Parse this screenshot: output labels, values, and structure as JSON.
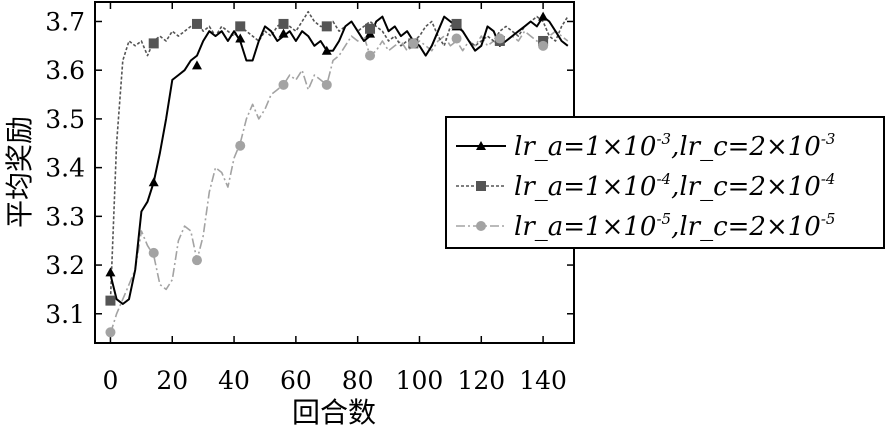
{
  "chart_data": {
    "type": "line",
    "title": "",
    "xlabel": "回合数",
    "ylabel": "平均奖励",
    "xlim": [
      -5,
      150
    ],
    "ylim": [
      3.04,
      3.74
    ],
    "xticks": [
      0,
      20,
      40,
      60,
      80,
      100,
      120,
      140
    ],
    "xtick_labels": [
      "0",
      "20",
      "40",
      "60",
      "80",
      "100",
      "120",
      "140"
    ],
    "yticks": [
      3.1,
      3.2,
      3.3,
      3.4,
      3.5,
      3.6,
      3.7
    ],
    "ytick_labels": [
      "3.1",
      "3.2",
      "3.3",
      "3.4",
      "3.5",
      "3.6",
      "3.7"
    ],
    "grid": false,
    "legend_position": "right",
    "series": [
      {
        "key": "a",
        "legend_pre": "lr_a=1×10",
        "legend_exp1": "-3",
        "legend_mid": ",lr_c=2×10",
        "legend_exp2": "-3",
        "color": "#000000",
        "dash": "",
        "width": 2,
        "marker": "triangle",
        "x": [
          0,
          2,
          4,
          6,
          8,
          10,
          12,
          14,
          16,
          18,
          20,
          22,
          24,
          26,
          28,
          30,
          32,
          34,
          36,
          38,
          40,
          42,
          44,
          46,
          48,
          50,
          52,
          54,
          56,
          58,
          60,
          62,
          64,
          66,
          68,
          70,
          72,
          74,
          76,
          78,
          80,
          82,
          84,
          86,
          88,
          90,
          92,
          94,
          96,
          98,
          100,
          102,
          104,
          106,
          108,
          110,
          112,
          114,
          116,
          118,
          120,
          122,
          124,
          126,
          128,
          130,
          132,
          134,
          136,
          138,
          140,
          142,
          144,
          146,
          148
        ],
        "y": [
          3.18,
          3.13,
          3.12,
          3.13,
          3.19,
          3.31,
          3.33,
          3.37,
          3.43,
          3.5,
          3.58,
          3.59,
          3.6,
          3.62,
          3.63,
          3.66,
          3.68,
          3.67,
          3.68,
          3.66,
          3.68,
          3.66,
          3.62,
          3.62,
          3.66,
          3.69,
          3.68,
          3.66,
          3.67,
          3.68,
          3.66,
          3.68,
          3.67,
          3.65,
          3.66,
          3.64,
          3.64,
          3.66,
          3.69,
          3.7,
          3.68,
          3.66,
          3.67,
          3.7,
          3.71,
          3.68,
          3.69,
          3.67,
          3.68,
          3.66,
          3.65,
          3.63,
          3.65,
          3.68,
          3.71,
          3.7,
          3.69,
          3.68,
          3.66,
          3.64,
          3.65,
          3.69,
          3.68,
          3.65,
          3.66,
          3.67,
          3.68,
          3.69,
          3.7,
          3.69,
          3.71,
          3.7,
          3.68,
          3.66,
          3.65
        ],
        "marker_x": [
          0,
          14,
          28,
          42,
          56,
          70,
          84,
          98,
          112,
          126,
          140
        ],
        "marker_y": [
          3.185,
          3.37,
          3.61,
          3.665,
          3.675,
          3.64,
          3.675,
          3.655,
          3.69,
          3.66,
          3.71
        ]
      },
      {
        "key": "b",
        "legend_pre": "lr_a=1×10",
        "legend_exp1": "-4",
        "legend_mid": ",lr_c=2×10",
        "legend_exp2": "-4",
        "color": "#555555",
        "dash": "3,2",
        "width": 1.6,
        "marker": "square",
        "x": [
          0,
          2,
          4,
          6,
          8,
          10,
          12,
          14,
          16,
          18,
          20,
          22,
          24,
          26,
          28,
          30,
          32,
          34,
          36,
          38,
          40,
          42,
          44,
          46,
          48,
          50,
          52,
          54,
          56,
          58,
          60,
          62,
          64,
          66,
          68,
          70,
          72,
          74,
          76,
          78,
          80,
          82,
          84,
          86,
          88,
          90,
          92,
          94,
          96,
          98,
          100,
          102,
          104,
          106,
          108,
          110,
          112,
          114,
          116,
          118,
          120,
          122,
          124,
          126,
          128,
          130,
          132,
          134,
          136,
          138,
          140,
          142,
          144,
          146,
          148
        ],
        "y": [
          3.13,
          3.45,
          3.62,
          3.66,
          3.65,
          3.66,
          3.63,
          3.66,
          3.67,
          3.66,
          3.68,
          3.67,
          3.68,
          3.69,
          3.7,
          3.68,
          3.69,
          3.67,
          3.69,
          3.68,
          3.67,
          3.69,
          3.68,
          3.67,
          3.66,
          3.68,
          3.67,
          3.69,
          3.7,
          3.69,
          3.68,
          3.7,
          3.72,
          3.7,
          3.69,
          3.69,
          3.7,
          3.68,
          3.69,
          3.7,
          3.68,
          3.69,
          3.7,
          3.69,
          3.68,
          3.66,
          3.67,
          3.65,
          3.66,
          3.66,
          3.67,
          3.69,
          3.7,
          3.67,
          3.65,
          3.69,
          3.7,
          3.68,
          3.66,
          3.65,
          3.66,
          3.67,
          3.66,
          3.68,
          3.69,
          3.68,
          3.67,
          3.69,
          3.7,
          3.71,
          3.7,
          3.67,
          3.66,
          3.69,
          3.71
        ],
        "marker_x": [
          0,
          14,
          28,
          42,
          56,
          70,
          84,
          98,
          112,
          126,
          140
        ],
        "marker_y": [
          3.127,
          3.655,
          3.695,
          3.69,
          3.695,
          3.69,
          3.685,
          3.655,
          3.695,
          3.66,
          3.66
        ]
      },
      {
        "key": "c",
        "legend_pre": "lr_a=1×10",
        "legend_exp1": "-5",
        "legend_mid": ",lr_c=2×10",
        "legend_exp2": "-5",
        "color": "#a3a3a3",
        "dash": "9,3,2,3",
        "width": 1.6,
        "marker": "circle",
        "x": [
          0,
          2,
          4,
          6,
          8,
          10,
          12,
          14,
          16,
          18,
          20,
          22,
          24,
          26,
          28,
          30,
          32,
          34,
          36,
          38,
          40,
          42,
          44,
          46,
          48,
          50,
          52,
          54,
          56,
          58,
          60,
          62,
          64,
          66,
          68,
          70,
          72,
          74,
          76,
          78,
          80,
          82,
          84,
          86,
          88,
          90,
          92,
          94,
          96,
          98,
          100,
          102,
          104,
          106,
          108,
          110,
          112,
          114,
          116,
          118,
          120,
          122,
          124,
          126,
          128,
          130,
          132,
          134,
          136,
          138,
          140,
          142,
          144,
          146,
          148
        ],
        "y": [
          3.06,
          3.1,
          3.13,
          3.16,
          3.19,
          3.27,
          3.24,
          3.22,
          3.16,
          3.15,
          3.17,
          3.25,
          3.28,
          3.27,
          3.21,
          3.26,
          3.35,
          3.4,
          3.39,
          3.36,
          3.42,
          3.45,
          3.5,
          3.53,
          3.5,
          3.52,
          3.55,
          3.56,
          3.57,
          3.59,
          3.58,
          3.6,
          3.56,
          3.59,
          3.58,
          3.57,
          3.62,
          3.63,
          3.65,
          3.67,
          3.66,
          3.67,
          3.63,
          3.64,
          3.66,
          3.64,
          3.65,
          3.66,
          3.64,
          3.65,
          3.66,
          3.65,
          3.64,
          3.66,
          3.67,
          3.65,
          3.66,
          3.64,
          3.66,
          3.65,
          3.67,
          3.65,
          3.66,
          3.65,
          3.66,
          3.67,
          3.66,
          3.68,
          3.67,
          3.66,
          3.65,
          3.67,
          3.68,
          3.67,
          3.66
        ],
        "marker_x": [
          0,
          14,
          28,
          42,
          56,
          70,
          84,
          98,
          112,
          126,
          140
        ],
        "marker_y": [
          3.062,
          3.225,
          3.21,
          3.445,
          3.57,
          3.57,
          3.63,
          3.655,
          3.665,
          3.665,
          3.65
        ]
      }
    ]
  }
}
